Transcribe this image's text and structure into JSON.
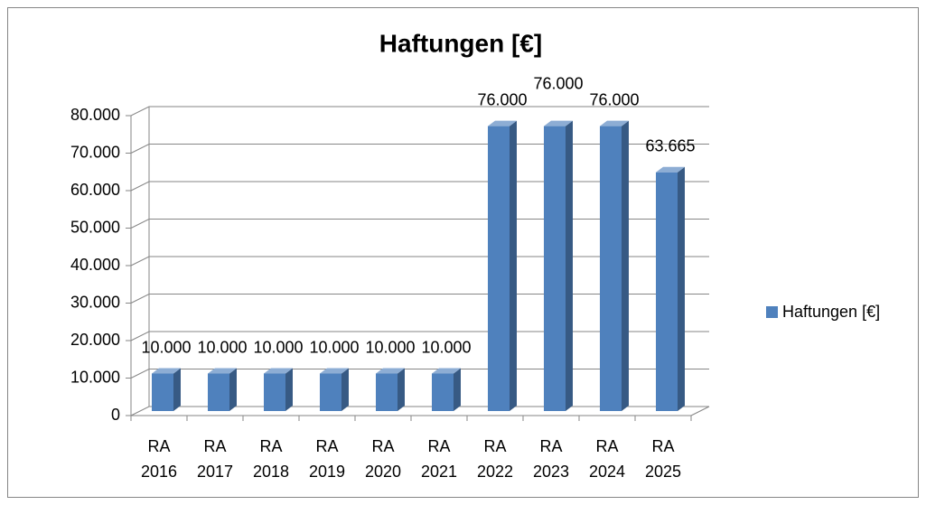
{
  "chart_data": {
    "type": "bar3d",
    "title": "Haftungen [€]",
    "categories": [
      "RA 2016",
      "RA 2017",
      "RA 2018",
      "RA 2019",
      "RA 2020",
      "RA 2021",
      "RA 2022",
      "RA 2023",
      "RA 2024",
      "RA 2025"
    ],
    "series": [
      {
        "name": "Haftungen [€]",
        "color": "#4f81bd",
        "values": [
          10000,
          10000,
          10000,
          10000,
          10000,
          10000,
          76000,
          76000,
          76000,
          63665
        ],
        "value_labels": [
          "10.000",
          "10.000",
          "10.000",
          "10.000",
          "10.000",
          "10.000",
          "76.000",
          "76.000",
          "76.000",
          "63.665"
        ]
      }
    ],
    "ylim": [
      0,
      80000
    ],
    "yticks": [
      0,
      {
        "value": 10000,
        "label": "10.000"
      },
      {
        "value": 20000,
        "label": "20.000"
      },
      {
        "value": 30000,
        "label": "30.000"
      },
      {
        "value": 40000,
        "label": "40.000"
      },
      {
        "value": 50000,
        "label": "50.000"
      },
      {
        "value": 60000,
        "label": "60.000"
      },
      {
        "value": 70000,
        "label": "70.000"
      },
      {
        "value": 80000,
        "label": "80.000"
      }
    ],
    "grid": true,
    "legend": "right"
  }
}
